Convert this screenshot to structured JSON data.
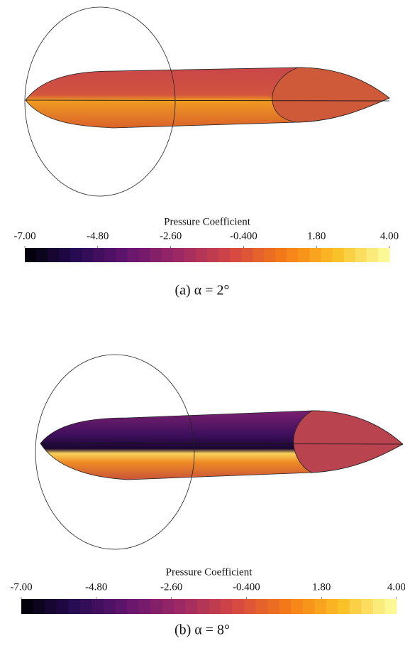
{
  "panels": [
    {
      "colorbar": {
        "title": "Pressure Coefficient",
        "range": [
          -7,
          4
        ],
        "ticks": [
          {
            "value": -7,
            "label": "-7.00"
          },
          {
            "value": -4.8,
            "label": "-4.80"
          },
          {
            "value": -2.6,
            "label": "-2.60"
          },
          {
            "value": -0.4,
            "label": "-0.400"
          },
          {
            "value": 1.8,
            "label": "1.80"
          },
          {
            "value": 4,
            "label": "4.00"
          }
        ]
      },
      "caption": "(a)  α = 2°"
    },
    {
      "colorbar": {
        "title": "Pressure Coefficient",
        "range": [
          -7,
          4
        ],
        "ticks": [
          {
            "value": -7,
            "label": "-7.00"
          },
          {
            "value": -4.8,
            "label": "-4.80"
          },
          {
            "value": -2.6,
            "label": "-2.60"
          },
          {
            "value": -0.4,
            "label": "-0.400"
          },
          {
            "value": 1.8,
            "label": "1.80"
          },
          {
            "value": 4,
            "label": "4.00"
          }
        ]
      },
      "caption": "(b)  α = 8°"
    }
  ]
}
